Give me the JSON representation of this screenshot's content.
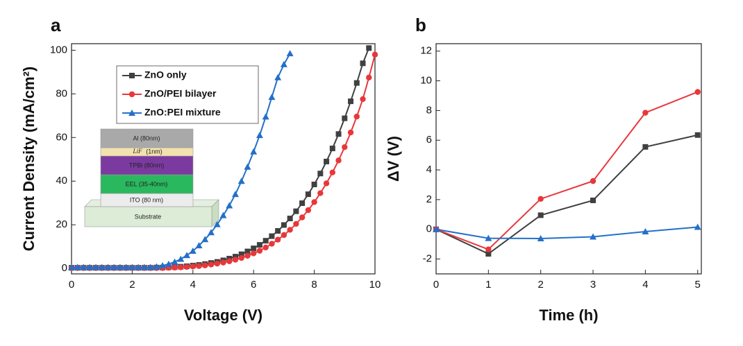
{
  "chart_data": [
    {
      "type": "line",
      "panel_label": "a",
      "x_label": "Voltage (V)",
      "y_label": "Current Density (mA/cm²)",
      "xlim": [
        0,
        10
      ],
      "ylim": [
        -2.5,
        103
      ],
      "xticks": [
        0,
        2,
        4,
        6,
        8,
        10
      ],
      "yticks": [
        0,
        20,
        40,
        60,
        80,
        100
      ],
      "legend": "upper left",
      "inset_labels": [
        "Al (80nm)",
        "LiF",
        "(1nm)",
        "TPBi (80nm)",
        "EEL (35-40nm)",
        "ITO (80 nm)",
        "Substrate"
      ],
      "x": [
        0,
        0.2,
        0.4,
        0.6,
        0.8,
        1,
        1.2,
        1.4,
        1.6,
        1.8,
        2,
        2.2,
        2.4,
        2.6,
        2.8,
        3,
        3.2,
        3.4,
        3.6,
        3.8,
        4,
        4.2,
        4.4,
        4.6,
        4.8,
        5,
        5.2,
        5.4,
        5.6,
        5.8,
        6,
        6.2,
        6.4,
        6.6,
        6.8,
        7,
        7.2,
        7.4,
        7.6,
        7.8,
        8,
        8.2,
        8.4,
        8.6,
        8.8,
        9,
        9.2,
        9.4,
        9.6,
        9.8,
        10
      ],
      "series": [
        {
          "name": "ZnO only",
          "color": "#404040",
          "marker": "square",
          "values": [
            0.3,
            0.3,
            0.3,
            0.3,
            0.3,
            0.3,
            0.3,
            0.3,
            0.3,
            0.3,
            0.3,
            0.3,
            0.3,
            0.3,
            0.4,
            0.4,
            0.5,
            0.6,
            0.8,
            1.0,
            1.3,
            1.6,
            2.0,
            2.5,
            3.0,
            3.7,
            4.5,
            5.4,
            6.5,
            7.8,
            9.2,
            10.8,
            12.7,
            14.8,
            17.2,
            19.9,
            22.9,
            26.2,
            29.9,
            34.0,
            38.5,
            43.5,
            49.0,
            55.0,
            61.6,
            68.8,
            76.6,
            85.0,
            94.0,
            101,
            null
          ]
        },
        {
          "name": "ZnO/PEI bilayer",
          "color": "#e8373b",
          "marker": "circle",
          "values": [
            0.2,
            0.2,
            0.2,
            0.2,
            0.2,
            0.2,
            0.2,
            0.2,
            0.2,
            0.2,
            0.2,
            0.2,
            0.2,
            0.2,
            0.2,
            0.2,
            0.3,
            0.4,
            0.5,
            0.7,
            0.9,
            1.1,
            1.4,
            1.8,
            2.2,
            2.7,
            3.3,
            4.0,
            4.8,
            5.8,
            6.9,
            8.1,
            9.6,
            11.3,
            13.2,
            15.3,
            17.7,
            20.4,
            23.4,
            26.7,
            30.4,
            34.5,
            39.0,
            44.0,
            49.5,
            55.6,
            62.3,
            69.6,
            77.6,
            87.5,
            98
          ]
        },
        {
          "name": "ZnO:PEI mixture",
          "color": "#2370c8",
          "marker": "triangle",
          "values": [
            0.5,
            0.5,
            0.5,
            0.5,
            0.5,
            0.5,
            0.5,
            0.5,
            0.5,
            0.5,
            0.5,
            0.5,
            0.5,
            0.5,
            0.8,
            1.3,
            2.0,
            3.0,
            4.3,
            6.0,
            8.0,
            10.5,
            13.3,
            16.5,
            20.2,
            24.3,
            28.8,
            34.0,
            40.0,
            46.5,
            53.5,
            61.0,
            69.5,
            78.5,
            87.5,
            93.5,
            98.5,
            null,
            null,
            null,
            null,
            null,
            null,
            null,
            null,
            null,
            null,
            null,
            null,
            null,
            null
          ]
        }
      ]
    },
    {
      "type": "line",
      "panel_label": "b",
      "x_label": "Time (h)",
      "y_label": "ΔV (V)",
      "xlim": [
        0,
        5.07
      ],
      "ylim": [
        -3,
        12.5
      ],
      "xticks": [
        0,
        1,
        2,
        3,
        4,
        5
      ],
      "yticks": [
        -2,
        0,
        2,
        4,
        6,
        8,
        10,
        12
      ],
      "x": [
        0,
        1,
        2,
        3,
        4,
        5
      ],
      "series": [
        {
          "color": "#404040",
          "marker": "square",
          "values": [
            0,
            -1.65,
            0.95,
            1.95,
            5.55,
            6.35
          ]
        },
        {
          "color": "#e8373b",
          "marker": "circle",
          "values": [
            0,
            -1.35,
            2.05,
            3.25,
            7.85,
            9.25
          ]
        },
        {
          "color": "#2370c8",
          "marker": "triangle",
          "values": [
            0,
            -0.6,
            -0.62,
            -0.5,
            -0.15,
            0.15
          ]
        }
      ]
    }
  ]
}
